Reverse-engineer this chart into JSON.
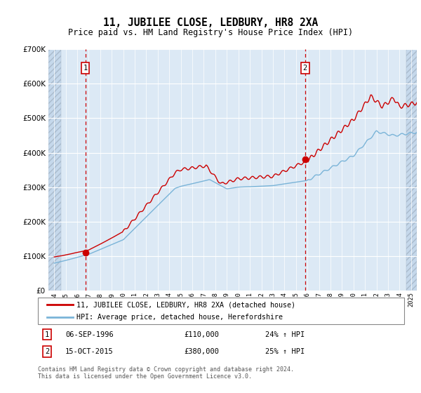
{
  "title": "11, JUBILEE CLOSE, LEDBURY, HR8 2XA",
  "subtitle": "Price paid vs. HM Land Registry's House Price Index (HPI)",
  "legend_line1": "11, JUBILEE CLOSE, LEDBURY, HR8 2XA (detached house)",
  "legend_line2": "HPI: Average price, detached house, Herefordshire",
  "annotation1_date": "06-SEP-1996",
  "annotation1_price": "£110,000",
  "annotation1_hpi": "24% ↑ HPI",
  "annotation1_year": 1996.7,
  "annotation1_value": 110000,
  "annotation2_date": "15-OCT-2015",
  "annotation2_price": "£380,000",
  "annotation2_hpi": "25% ↑ HPI",
  "annotation2_year": 2015.8,
  "annotation2_value": 380000,
  "hpi_color": "#7ab4d8",
  "price_color": "#cc0000",
  "bg_color": "#dce9f5",
  "grid_color": "#ffffff",
  "footer": "Contains HM Land Registry data © Crown copyright and database right 2024.\nThis data is licensed under the Open Government Licence v3.0.",
  "xmin": 1993.5,
  "xmax": 2025.5,
  "ymin": 0,
  "ymax": 700000
}
